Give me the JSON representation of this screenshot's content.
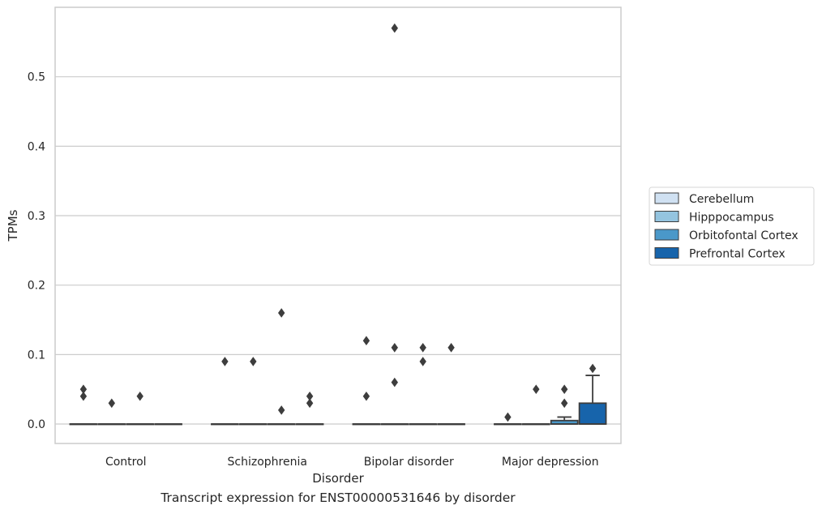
{
  "caption": "Transcript expression for ENST00000531646 by disorder",
  "chart_data": {
    "type": "box",
    "title": "",
    "xlabel": "Disorder",
    "ylabel": "TPMs",
    "ylim": [
      -0.028,
      0.6
    ],
    "yticks": [
      0.0,
      0.1,
      0.2,
      0.3,
      0.4,
      0.5
    ],
    "ytick_labels": [
      "0.0",
      "0.1",
      "0.2",
      "0.3",
      "0.4",
      "0.5"
    ],
    "categories": [
      "Control",
      "Schizophrenia",
      "Bipolar disorder",
      "Major depression"
    ],
    "grid": "horizontal",
    "legend_position": "right",
    "series": [
      {
        "name": "Cerebellum",
        "color": "#d0e1f2",
        "boxes": [
          {
            "q1": 0,
            "median": 0,
            "q3": 0,
            "whislo": 0,
            "whishi": 0,
            "fliers": [
              0.05,
              0.04
            ]
          },
          {
            "q1": 0,
            "median": 0,
            "q3": 0,
            "whislo": 0,
            "whishi": 0,
            "fliers": [
              0.09
            ]
          },
          {
            "q1": 0,
            "median": 0,
            "q3": 0,
            "whislo": 0,
            "whishi": 0,
            "fliers": [
              0.04,
              0.12
            ]
          },
          {
            "q1": 0,
            "median": 0,
            "q3": 0,
            "whislo": 0,
            "whishi": 0,
            "fliers": [
              0.01
            ]
          }
        ]
      },
      {
        "name": "Hipppocampus",
        "color": "#94c4df",
        "boxes": [
          {
            "q1": 0,
            "median": 0,
            "q3": 0,
            "whislo": 0,
            "whishi": 0,
            "fliers": [
              0.03
            ]
          },
          {
            "q1": 0,
            "median": 0,
            "q3": 0,
            "whislo": 0,
            "whishi": 0,
            "fliers": [
              0.09
            ]
          },
          {
            "q1": 0,
            "median": 0,
            "q3": 0,
            "whislo": 0,
            "whishi": 0,
            "fliers": [
              0.06,
              0.11,
              0.57
            ]
          },
          {
            "q1": 0,
            "median": 0,
            "q3": 0,
            "whislo": 0,
            "whishi": 0,
            "fliers": [
              0.05
            ]
          }
        ]
      },
      {
        "name": "Orbitofontal Cortex",
        "color": "#4a98c9",
        "boxes": [
          {
            "q1": 0,
            "median": 0,
            "q3": 0,
            "whislo": 0,
            "whishi": 0,
            "fliers": [
              0.04
            ]
          },
          {
            "q1": 0,
            "median": 0,
            "q3": 0,
            "whislo": 0,
            "whishi": 0,
            "fliers": [
              0.02,
              0.16
            ]
          },
          {
            "q1": 0,
            "median": 0,
            "q3": 0,
            "whislo": 0,
            "whishi": 0,
            "fliers": [
              0.11,
              0.09
            ]
          },
          {
            "q1": 0,
            "median": 0,
            "q3": 0.005,
            "whislo": 0,
            "whishi": 0.01,
            "fliers": [
              0.03,
              0.05
            ]
          }
        ]
      },
      {
        "name": "Prefrontal Cortex",
        "color": "#1764ab",
        "boxes": [
          {
            "q1": 0,
            "median": 0,
            "q3": 0,
            "whislo": 0,
            "whishi": 0,
            "fliers": []
          },
          {
            "q1": 0,
            "median": 0,
            "q3": 0,
            "whislo": 0,
            "whishi": 0,
            "fliers": [
              0.03,
              0.04
            ]
          },
          {
            "q1": 0,
            "median": 0,
            "q3": 0,
            "whislo": 0,
            "whishi": 0,
            "fliers": [
              0.11
            ]
          },
          {
            "q1": 0,
            "median": 0,
            "q3": 0.03,
            "whislo": 0,
            "whishi": 0.07,
            "fliers": [
              0.08
            ]
          }
        ]
      }
    ]
  }
}
